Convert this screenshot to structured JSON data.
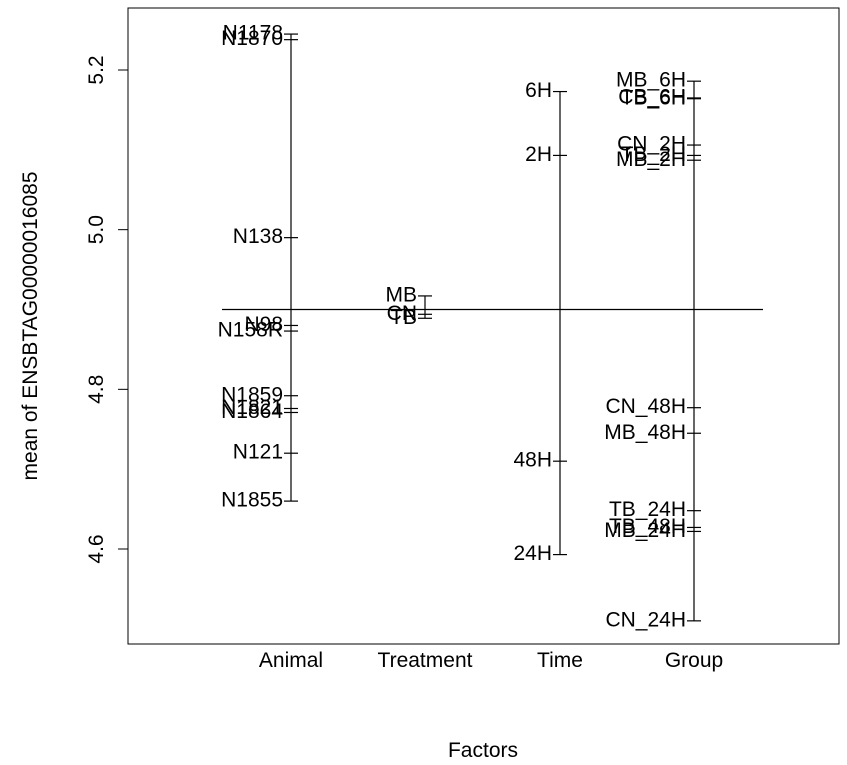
{
  "chart_data": {
    "type": "factor-plot",
    "xlabel": "Factors",
    "ylabel": "mean of ENSBTAG00000016085",
    "ylim": [
      4.43,
      5.27
    ],
    "yticks": [
      "4.6",
      "4.8",
      "5.0",
      "5.2"
    ],
    "grand_mean": 4.9,
    "factors": [
      {
        "name": "Animal",
        "levels": [
          {
            "label": "N1178",
            "value": 5.245
          },
          {
            "label": "N1870",
            "value": 5.238
          },
          {
            "label": "N138",
            "value": 4.99
          },
          {
            "label": "N98",
            "value": 4.88
          },
          {
            "label": "N158R",
            "value": 4.873
          },
          {
            "label": "N1859",
            "value": 4.792
          },
          {
            "label": "N1821",
            "value": 4.776
          },
          {
            "label": "N1864",
            "value": 4.771
          },
          {
            "label": "N121",
            "value": 4.72
          },
          {
            "label": "N1855",
            "value": 4.66
          }
        ]
      },
      {
        "name": "Treatment",
        "levels": [
          {
            "label": "MB",
            "value": 4.917
          },
          {
            "label": "CN",
            "value": 4.894
          },
          {
            "label": "TB",
            "value": 4.889
          }
        ]
      },
      {
        "name": "Time",
        "levels": [
          {
            "label": "6H",
            "value": 5.173
          },
          {
            "label": "2H",
            "value": 5.093
          },
          {
            "label": "48H",
            "value": 4.71
          },
          {
            "label": "24H",
            "value": 4.593
          }
        ]
      },
      {
        "name": "Group",
        "levels": [
          {
            "label": "MB_6H",
            "value": 5.186
          },
          {
            "label": "CB_6H",
            "value": 5.165
          },
          {
            "label": "TB_6H",
            "value": 5.164
          },
          {
            "label": "CN_2H",
            "value": 5.106
          },
          {
            "label": "TB_2H",
            "value": 5.093
          },
          {
            "label": "MB_2H",
            "value": 5.087
          },
          {
            "label": "CN_48H",
            "value": 4.777
          },
          {
            "label": "MB_48H",
            "value": 4.745
          },
          {
            "label": "TB_24H",
            "value": 4.648
          },
          {
            "label": "TB_48H",
            "value": 4.627
          },
          {
            "label": "MB_24H",
            "value": 4.622
          },
          {
            "label": "CN_24H",
            "value": 4.51
          }
        ]
      }
    ]
  }
}
